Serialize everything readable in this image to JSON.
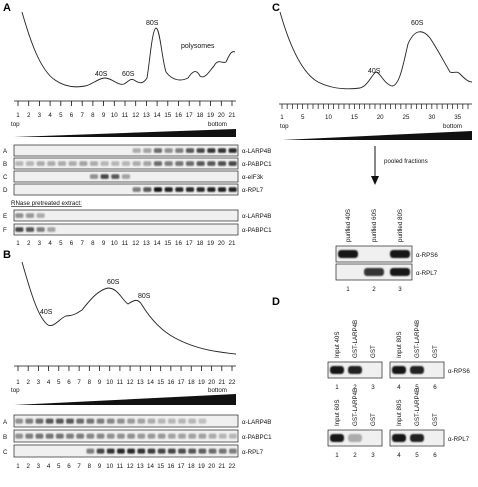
{
  "panel_A": {
    "letter": "A",
    "peaks": [
      "40S",
      "60S",
      "80S",
      "polysomes"
    ],
    "fractions": [
      "1",
      "2",
      "3",
      "4",
      "5",
      "6",
      "7",
      "8",
      "9",
      "10",
      "11",
      "12",
      "13",
      "14",
      "15",
      "16",
      "17",
      "18",
      "19",
      "20",
      "21"
    ],
    "top_label": "top",
    "bottom_label": "bottom",
    "rows": [
      {
        "row": "A",
        "antibody": "α-LARP4B"
      },
      {
        "row": "B",
        "antibody": "α-PABPC1"
      },
      {
        "row": "C",
        "antibody": "α-eIF3k"
      },
      {
        "row": "D",
        "antibody": "α-RPL7"
      }
    ],
    "rnase_title": "RNase pretreated extract:",
    "rnase_rows": [
      {
        "row": "E",
        "antibody": "α-LARP4B"
      },
      {
        "row": "F",
        "antibody": "α-PABPC1"
      }
    ]
  },
  "panel_B": {
    "letter": "B",
    "peaks": [
      "40S",
      "60S",
      "80S"
    ],
    "fractions": [
      "1",
      "2",
      "3",
      "4",
      "5",
      "6",
      "7",
      "8",
      "9",
      "10",
      "11",
      "12",
      "13",
      "14",
      "15",
      "16",
      "17",
      "18",
      "19",
      "20",
      "21",
      "22"
    ],
    "top_label": "top",
    "bottom_label": "bottom",
    "rows": [
      {
        "row": "A",
        "antibody": "α-LARP4B"
      },
      {
        "row": "B",
        "antibody": "α-PABPC1"
      },
      {
        "row": "C",
        "antibody": "α-RPL7"
      }
    ]
  },
  "panel_C": {
    "letter": "C",
    "peaks": [
      "40S",
      "60S"
    ],
    "fractions": [
      "1",
      "5",
      "10",
      "15",
      "20",
      "25",
      "30",
      "35"
    ],
    "top_label": "top",
    "bottom_label": "bottom",
    "arrow_label": "pooled fractions",
    "lane_headers": [
      "purified 40S",
      "purified 60S",
      "purified 80S"
    ],
    "rows": [
      {
        "antibody": "α-RPS6"
      },
      {
        "antibody": "α-RPL7"
      }
    ],
    "lane_numbers": [
      "1",
      "2",
      "3"
    ]
  },
  "panel_D": {
    "letter": "D",
    "top_left_headers": [
      "Input 40S",
      "GST-LARP4B",
      "GST"
    ],
    "top_right_headers": [
      "Input 80S",
      "GST-LARP4B",
      "GST"
    ],
    "top_antibody": "α-RPS6",
    "top_left_lanes": [
      "1",
      "2",
      "3"
    ],
    "top_right_lanes": [
      "4",
      "5",
      "6"
    ],
    "bottom_left_headers": [
      "Input 60S",
      "GST-LARP4B",
      "GST"
    ],
    "bottom_right_headers": [
      "Input 80S",
      "GST-LARP4B",
      "GST"
    ],
    "bottom_antibody": "α-RPL7",
    "bottom_left_lanes": [
      "1",
      "2",
      "3"
    ],
    "bottom_right_lanes": [
      "4",
      "5",
      "6"
    ]
  }
}
